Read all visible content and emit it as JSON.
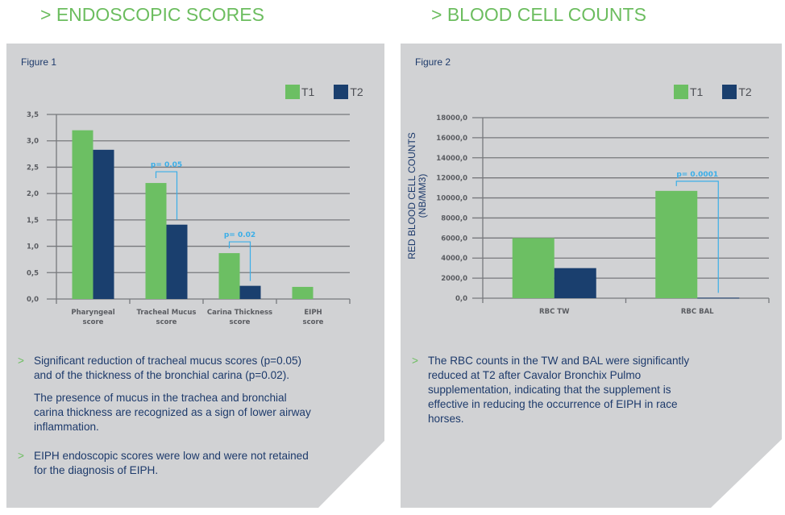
{
  "colors": {
    "t1": "#6cbf63",
    "t2": "#1a3f6e",
    "accent_green": "#6cbd5f",
    "pvalue": "#3aaee8",
    "panel": "#d1d2d4",
    "text": "#1d3a6b"
  },
  "left": {
    "section_title": "> ENDOSCOPIC SCORES",
    "figure_label": "Figure 1",
    "legend": [
      {
        "label": "T1"
      },
      {
        "label": "T2"
      }
    ],
    "bullets": [
      {
        "arrow": ">",
        "paragraphs": [
          "Significant reduction of tracheal mucus scores (p=0.05) and of the thickness of the bronchial carina (p=0.02).",
          "The presence of mucus in the trachea and bronchial carina thickness are recognized as a sign of lower airway inflammation."
        ]
      },
      {
        "arrow": ">",
        "paragraphs": [
          "EIPH endoscopic scores were low and were not retained for the diagnosis of EIPH."
        ]
      }
    ]
  },
  "right": {
    "section_title": "> BLOOD CELL COUNTS",
    "figure_label": "Figure 2",
    "legend": [
      {
        "label": "T1"
      },
      {
        "label": "T2"
      }
    ],
    "bullets": [
      {
        "arrow": ">",
        "paragraphs": [
          "The RBC counts in the TW and BAL were significantly reduced at T2 after Cavalor Bronchix Pulmo supplementation, indicating that the supplement is effective in reducing the occurrence of EIPH in race horses."
        ]
      }
    ]
  },
  "chart_data": [
    {
      "type": "bar",
      "title": "Figure 1",
      "xlabel": "",
      "ylabel": "",
      "categories": [
        "Pharyngeal score",
        "Tracheal Mucus score",
        "Carina Thickness score",
        "EIPH score"
      ],
      "category_lines": [
        [
          "Pharyngeal",
          "score"
        ],
        [
          "Tracheal Mucus",
          "score"
        ],
        [
          "Carina Thickness",
          "score"
        ],
        [
          "EIPH",
          "score"
        ]
      ],
      "series": [
        {
          "name": "T1",
          "values": [
            3.2,
            2.2,
            0.87,
            0.23
          ]
        },
        {
          "name": "T2",
          "values": [
            2.83,
            1.41,
            0.25,
            0
          ]
        }
      ],
      "ylim": [
        0,
        3.5
      ],
      "yticks": [
        0,
        0.5,
        1.0,
        1.5,
        2.0,
        2.5,
        3.0,
        3.5
      ],
      "ytick_labels": [
        "0,0",
        "0,5",
        "1,0",
        "1,5",
        "2,0",
        "2,5",
        "3,0",
        "3,5"
      ],
      "grid": true,
      "legend_position": "top-right",
      "annotations": [
        {
          "category_index": 1,
          "text": "p= 0.05"
        },
        {
          "category_index": 2,
          "text": "p= 0.02"
        }
      ]
    },
    {
      "type": "bar",
      "title": "Figure 2",
      "xlabel": "",
      "ylabel": "RED BLOOD CELL COUNTS (NB/MM3)",
      "ylabel_lines": [
        "RED BLOOD CELL COUNTS",
        "(NB/MM3)"
      ],
      "categories": [
        "RBC TW",
        "RBC BAL"
      ],
      "series": [
        {
          "name": "T1",
          "values": [
            6000,
            10700
          ]
        },
        {
          "name": "T2",
          "values": [
            3000,
            50
          ]
        }
      ],
      "ylim": [
        0,
        18000
      ],
      "yticks": [
        0,
        2000,
        4000,
        6000,
        8000,
        10000,
        12000,
        14000,
        16000,
        18000
      ],
      "ytick_labels": [
        "0,0",
        "2000,0",
        "4000,0",
        "6000,0",
        "8000,0",
        "10000,0",
        "12000,0",
        "14000,0",
        "16000,0",
        "18000,0"
      ],
      "grid": true,
      "legend_position": "top-right",
      "annotations": [
        {
          "category_index": 1,
          "text": "p= 0.0001"
        }
      ]
    }
  ]
}
